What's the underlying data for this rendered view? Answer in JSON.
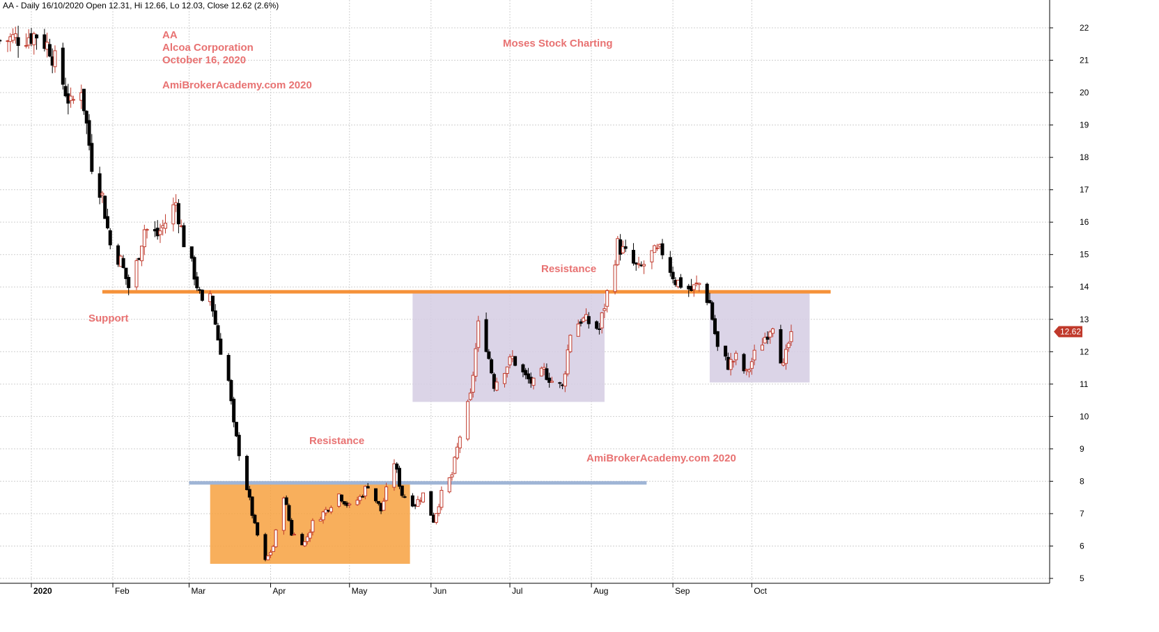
{
  "header": {
    "text": "AA - Daily 16/10/2020 Open 12.31, Hi 12.66, Lo 12.03, Close 12.62 (2.6%)"
  },
  "colors": {
    "up_candle": "#c0392b",
    "down_candle": "#000000",
    "annotation_text": "#e87272",
    "grid": "#cfcfcf",
    "orange_zone": "#f7a13f",
    "purple_zone": "#d5cce3",
    "orange_line": "#f5923a",
    "blue_line": "#9fb5d6",
    "price_tag": "#c0392b"
  },
  "chart_data": {
    "type": "candlestick",
    "ylim": [
      5,
      22
    ],
    "y_ticks": [
      5,
      6,
      7,
      8,
      9,
      10,
      11,
      12,
      13,
      14,
      15,
      16,
      17,
      18,
      19,
      20,
      21,
      22
    ],
    "x_ticks": [
      {
        "label": "2020",
        "date": "2020-01-01",
        "bold": true
      },
      {
        "label": "Feb",
        "date": "2020-02-01"
      },
      {
        "label": "Mar",
        "date": "2020-03-01"
      },
      {
        "label": "Apr",
        "date": "2020-04-01"
      },
      {
        "label": "May",
        "date": "2020-05-01"
      },
      {
        "label": "Jun",
        "date": "2020-06-01"
      },
      {
        "label": "Jul",
        "date": "2020-07-01"
      },
      {
        "label": "Aug",
        "date": "2020-08-01"
      },
      {
        "label": "Sep",
        "date": "2020-09-01"
      },
      {
        "label": "Oct",
        "date": "2020-10-01"
      }
    ],
    "last_price": "12.62",
    "date_range": [
      "2019-12-20",
      "2020-10-16"
    ],
    "close_path": [
      [
        "2019-12-20",
        21.6
      ],
      [
        "2019-12-27",
        21.7
      ],
      [
        "2020-01-03",
        21.8
      ],
      [
        "2020-01-08",
        21.4
      ],
      [
        "2020-01-13",
        20.3
      ],
      [
        "2020-01-16",
        19.6
      ],
      [
        "2020-01-20",
        20.2
      ],
      [
        "2020-01-24",
        17.8
      ],
      [
        "2020-01-28",
        16.8
      ],
      [
        "2020-01-31",
        15.3
      ],
      [
        "2020-02-04",
        14.8
      ],
      [
        "2020-02-07",
        14.0
      ],
      [
        "2020-02-10",
        14.7
      ],
      [
        "2020-02-13",
        15.8
      ],
      [
        "2020-02-18",
        15.6
      ],
      [
        "2020-02-21",
        16.0
      ],
      [
        "2020-02-25",
        16.6
      ],
      [
        "2020-02-28",
        15.4
      ],
      [
        "2020-03-03",
        14.4
      ],
      [
        "2020-03-06",
        13.4
      ],
      [
        "2020-03-09",
        13.8
      ],
      [
        "2020-03-12",
        12.4
      ],
      [
        "2020-03-16",
        11.1
      ],
      [
        "2020-03-18",
        9.7
      ],
      [
        "2020-03-20",
        8.9
      ],
      [
        "2020-03-23",
        7.8
      ],
      [
        "2020-03-26",
        6.6
      ],
      [
        "2020-03-30",
        5.5
      ],
      [
        "2020-04-02",
        6.0
      ],
      [
        "2020-04-06",
        7.6
      ],
      [
        "2020-04-09",
        6.4
      ],
      [
        "2020-04-14",
        6.1
      ],
      [
        "2020-04-17",
        6.7
      ],
      [
        "2020-04-22",
        7.1
      ],
      [
        "2020-04-27",
        7.6
      ],
      [
        "2020-05-01",
        7.2
      ],
      [
        "2020-05-05",
        7.5
      ],
      [
        "2020-05-08",
        7.9
      ],
      [
        "2020-05-13",
        7.1
      ],
      [
        "2020-05-18",
        8.6
      ],
      [
        "2020-05-21",
        7.6
      ],
      [
        "2020-05-26",
        7.3
      ],
      [
        "2020-05-29",
        7.6
      ],
      [
        "2020-06-02",
        6.8
      ],
      [
        "2020-06-05",
        7.6
      ],
      [
        "2020-06-09",
        8.2
      ],
      [
        "2020-06-12",
        9.4
      ],
      [
        "2020-06-16",
        10.6
      ],
      [
        "2020-06-19",
        12.8
      ],
      [
        "2020-06-22",
        12.2
      ],
      [
        "2020-06-25",
        11.0
      ],
      [
        "2020-06-29",
        11.5
      ],
      [
        "2020-07-02",
        11.8
      ],
      [
        "2020-07-07",
        11.2
      ],
      [
        "2020-07-10",
        11.0
      ],
      [
        "2020-07-14",
        11.4
      ],
      [
        "2020-07-17",
        11.1
      ],
      [
        "2020-07-21",
        10.9
      ],
      [
        "2020-07-24",
        12.6
      ],
      [
        "2020-07-28",
        13.0
      ],
      [
        "2020-07-31",
        12.9
      ],
      [
        "2020-08-04",
        12.7
      ],
      [
        "2020-08-07",
        13.8
      ],
      [
        "2020-08-11",
        15.3
      ],
      [
        "2020-08-14",
        15.0
      ],
      [
        "2020-08-19",
        14.5
      ],
      [
        "2020-08-24",
        15.0
      ],
      [
        "2020-08-28",
        15.1
      ],
      [
        "2020-09-02",
        14.2
      ],
      [
        "2020-09-08",
        13.9
      ],
      [
        "2020-09-11",
        14.1
      ],
      [
        "2020-09-15",
        13.5
      ],
      [
        "2020-09-18",
        12.1
      ],
      [
        "2020-09-22",
        11.6
      ],
      [
        "2020-09-25",
        11.8
      ],
      [
        "2020-09-29",
        11.3
      ],
      [
        "2020-10-02",
        11.9
      ],
      [
        "2020-10-07",
        12.6
      ],
      [
        "2020-10-09",
        12.9
      ],
      [
        "2020-10-13",
        11.5
      ],
      [
        "2020-10-16",
        12.62
      ]
    ]
  },
  "overlays": {
    "support_line": {
      "price": 13.85,
      "from": "2020-01-28",
      "to": "2020-10-31",
      "color": "#f5923a"
    },
    "resistance_line": {
      "price": 7.95,
      "from": "2020-03-01",
      "to": "2020-08-22",
      "color": "#9fb5d6"
    },
    "zones": [
      {
        "name": "orange-zone",
        "from": "2020-03-09",
        "to": "2020-05-24",
        "low": 5.45,
        "high": 7.95,
        "color": "#f7a13f"
      },
      {
        "name": "purple-zone-1",
        "from": "2020-05-25",
        "to": "2020-08-06",
        "low": 10.45,
        "high": 13.85,
        "color": "#d5cce3"
      },
      {
        "name": "purple-zone-2",
        "from": "2020-09-15",
        "to": "2020-10-23",
        "low": 11.05,
        "high": 13.85,
        "color": "#d5cce3"
      }
    ]
  },
  "annotations": {
    "ticker": "AA",
    "company": "Alcoa Corporation",
    "date": "October 16, 2020",
    "site": "AmiBrokerAcademy.com  2020",
    "brand": "Moses Stock Charting",
    "resistance_upper": "Resistance",
    "support": "Support",
    "resistance_lower": "Resistance",
    "site_lower": "AmiBrokerAcademy.com 2020"
  }
}
